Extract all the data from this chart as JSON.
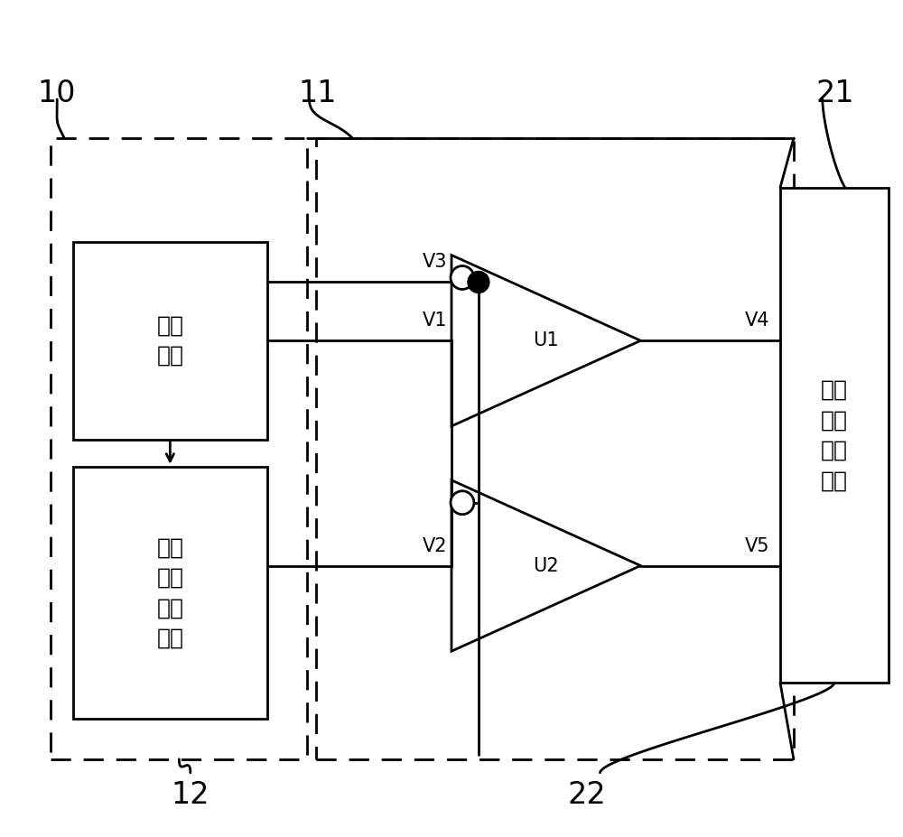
{
  "bg_color": "#ffffff",
  "line_color": "#000000",
  "micro_text": "微处\n理器",
  "excite_out_text": "激励\n信号\n输出\n电路",
  "right_box_text": "激励\n信号\n调理\n电路",
  "font_size_box": 18,
  "font_size_label": 24,
  "font_size_vn": 15
}
